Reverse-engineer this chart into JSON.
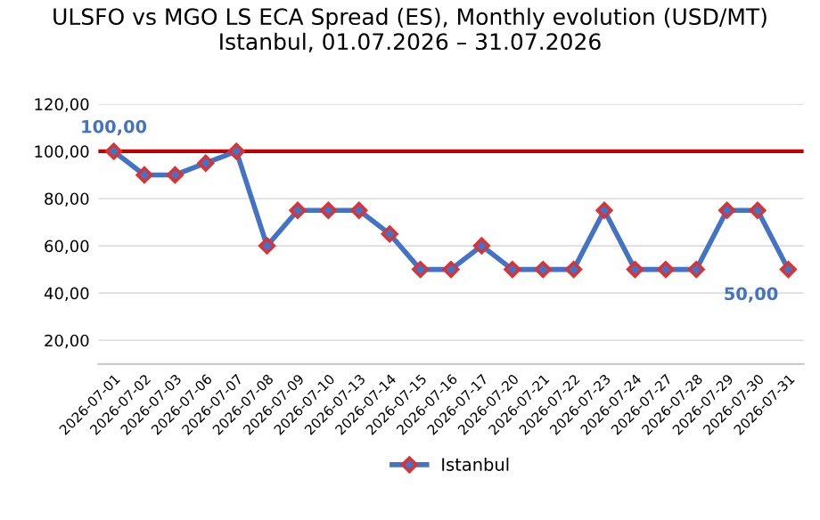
{
  "chart_data": {
    "type": "line",
    "title": "ULSFO vs MGO LS ECA Spread (ES), Monthly evolution (USD/MT)\nIstanbul, 01.07.2026 – 31.07.2026",
    "categories": [
      "2026-07-01",
      "2026-07-02",
      "2026-07-03",
      "2026-07-06",
      "2026-07-07",
      "2026-07-08",
      "2026-07-09",
      "2026-07-10",
      "2026-07-13",
      "2026-07-14",
      "2026-07-15",
      "2026-07-16",
      "2026-07-17",
      "2026-07-20",
      "2026-07-21",
      "2026-07-22",
      "2026-07-23",
      "2026-07-24",
      "2026-07-27",
      "2026-07-28",
      "2026-07-29",
      "2026-07-30",
      "2026-07-31"
    ],
    "series": [
      {
        "name": "Istanbul",
        "color": "#4472c4",
        "values": [
          100,
          90,
          90,
          95,
          100,
          60,
          75,
          75,
          75,
          65,
          50,
          50,
          60,
          50,
          50,
          50,
          75,
          50,
          50,
          50,
          75,
          75,
          50
        ],
        "value_labels": [
          "100,00",
          null,
          null,
          null,
          null,
          null,
          null,
          null,
          null,
          null,
          null,
          null,
          null,
          null,
          null,
          null,
          null,
          null,
          null,
          null,
          null,
          null,
          "50,00"
        ]
      }
    ],
    "ylim": [
      10,
      120
    ],
    "yticks": [
      {
        "value": 20,
        "label": "20,00"
      },
      {
        "value": 40,
        "label": "40,00"
      },
      {
        "value": 60,
        "label": "60,00"
      },
      {
        "value": 80,
        "label": "80,00"
      },
      {
        "value": 100,
        "label": "100,00"
      },
      {
        "value": 120,
        "label": "120,00"
      }
    ],
    "ref_lines": [
      {
        "axis": "y",
        "value": 100,
        "label": null,
        "color": "#c00000"
      }
    ],
    "grid": "y",
    "legend": "bottom",
    "marker": "diamond",
    "line_style": "solid"
  }
}
